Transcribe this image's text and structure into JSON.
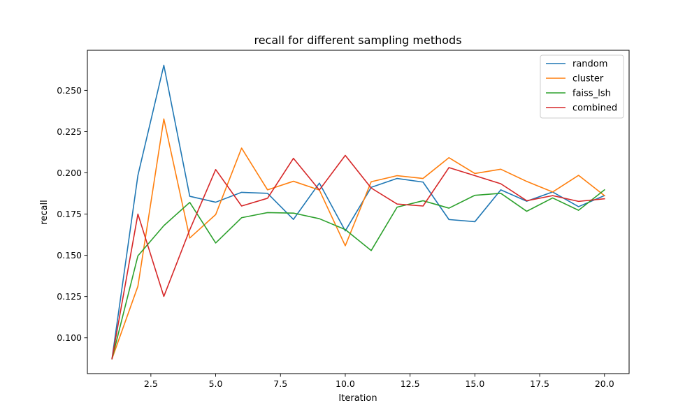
{
  "chart_data": {
    "type": "line",
    "title": "recall for different sampling methods",
    "xlabel": "Iteration",
    "ylabel": "recall",
    "xlim": [
      0.05,
      20.95
    ],
    "ylim": [
      0.0783,
      0.2743
    ],
    "xticks": [
      2.5,
      5.0,
      7.5,
      10.0,
      12.5,
      15.0,
      17.5,
      20.0
    ],
    "xtick_labels": [
      "2.5",
      "5.0",
      "7.5",
      "10.0",
      "12.5",
      "15.0",
      "17.5",
      "20.0"
    ],
    "yticks": [
      0.1,
      0.125,
      0.15,
      0.175,
      0.2,
      0.225,
      0.25
    ],
    "ytick_labels": [
      "0.100",
      "0.125",
      "0.150",
      "0.175",
      "0.200",
      "0.225",
      "0.250"
    ],
    "grid": false,
    "legend_position": "top-right",
    "x": [
      1,
      2,
      3,
      4,
      5,
      6,
      7,
      8,
      9,
      10,
      11,
      12,
      13,
      14,
      15,
      16,
      17,
      18,
      19,
      20
    ],
    "series": [
      {
        "name": "random",
        "color": "#1f77b4",
        "values": [
          0.0873,
          0.1985,
          0.2652,
          0.1858,
          0.1822,
          0.1882,
          0.1876,
          0.1718,
          0.1938,
          0.1648,
          0.1912,
          0.1966,
          0.1944,
          0.1717,
          0.1704,
          0.1897,
          0.1828,
          0.1884,
          0.1795,
          0.1862
        ]
      },
      {
        "name": "cluster",
        "color": "#ff7f0e",
        "values": [
          0.0873,
          0.1313,
          0.2327,
          0.1605,
          0.1747,
          0.215,
          0.1897,
          0.1949,
          0.1896,
          0.1558,
          0.1946,
          0.1983,
          0.1966,
          0.2092,
          0.1996,
          0.2022,
          0.1948,
          0.1884,
          0.1985,
          0.1862
        ]
      },
      {
        "name": "faiss_lsh",
        "color": "#2ca02c",
        "values": [
          0.0873,
          0.1497,
          0.168,
          0.1821,
          0.1575,
          0.1728,
          0.1759,
          0.1756,
          0.1722,
          0.1656,
          0.1529,
          0.1792,
          0.1831,
          0.1786,
          0.1864,
          0.1876,
          0.1767,
          0.1848,
          0.1773,
          0.1897
        ]
      },
      {
        "name": "combined",
        "color": "#d62728",
        "values": [
          0.0873,
          0.175,
          0.1251,
          0.1655,
          0.202,
          0.1799,
          0.1846,
          0.2088,
          0.1896,
          0.2106,
          0.1908,
          0.1811,
          0.1799,
          0.2032,
          0.1983,
          0.1934,
          0.1831,
          0.1862,
          0.1827,
          0.1843
        ]
      }
    ]
  }
}
